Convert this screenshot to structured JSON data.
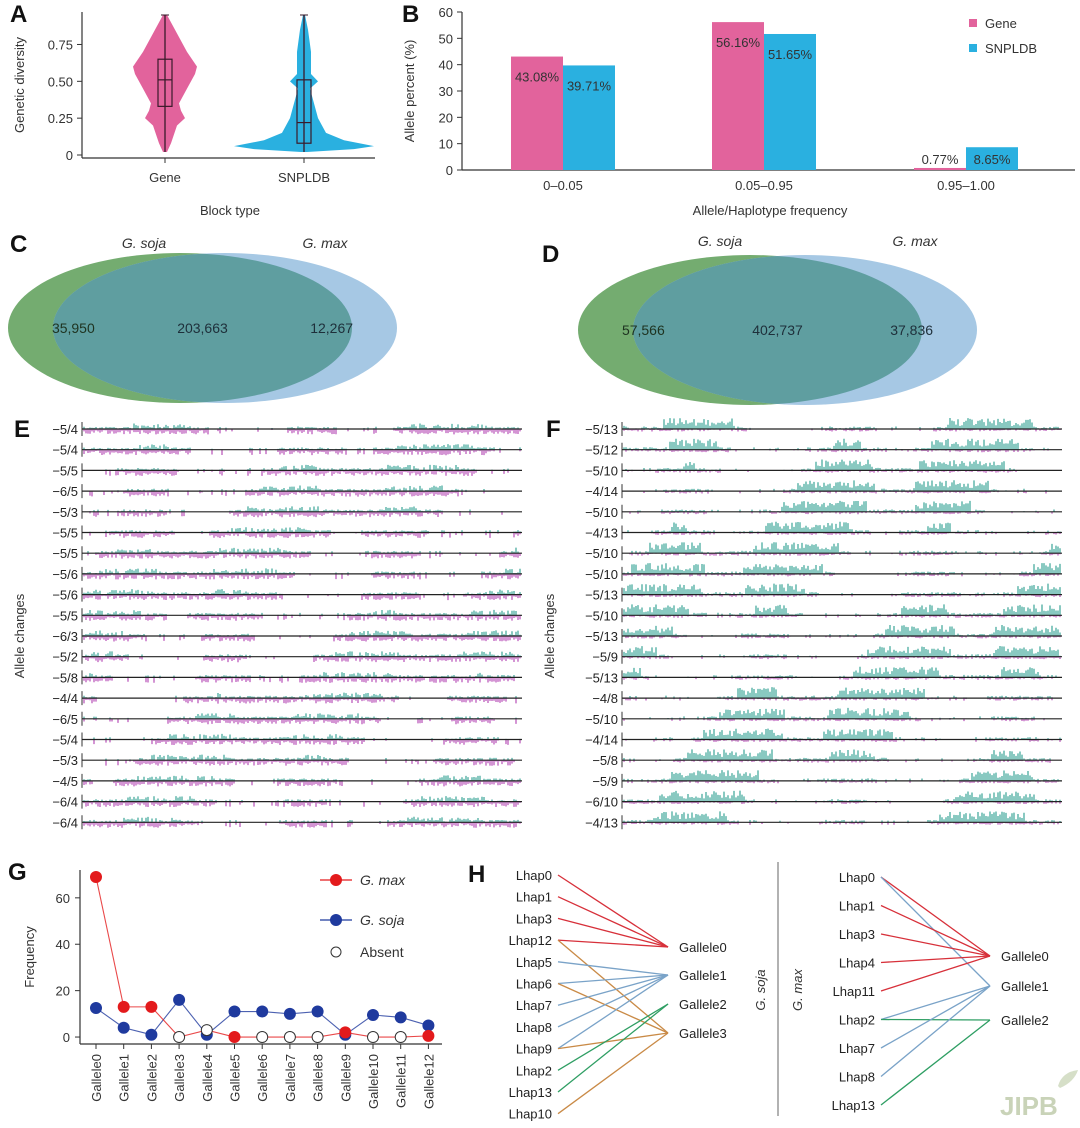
{
  "panels": {
    "A": "A",
    "B": "B",
    "C": "C",
    "D": "D",
    "E": "E",
    "F": "F",
    "G": "G",
    "H": "H"
  },
  "colors": {
    "gene": "#e2639c",
    "snpldb": "#2ab0e0",
    "soja_green": "#74ac70",
    "max_blue": "#a6c8e4",
    "overlap": "#5f9ea0",
    "track_pos": "#2a9d8f",
    "track_neg": "#b33fb3",
    "gmax_red": "#e31a1c",
    "gsoja_blue": "#1f3a9e"
  },
  "watermark": "JIPB",
  "chart_data": [
    {
      "id": "A",
      "type": "violin",
      "title": "",
      "xlabel": "Block type",
      "ylabel": "Genetic diversity",
      "categories": [
        "Gene",
        "SNPLDB"
      ],
      "yticks": [
        "0",
        "0.25",
        "0.50",
        "0.75"
      ],
      "ylim": [
        0,
        0.95
      ],
      "box": [
        {
          "name": "Gene",
          "min": 0.02,
          "q1": 0.33,
          "median": 0.51,
          "q3": 0.65,
          "max": 0.95
        },
        {
          "name": "SNPLDB",
          "min": 0.02,
          "q1": 0.08,
          "median": 0.22,
          "q3": 0.51,
          "max": 0.95
        }
      ]
    },
    {
      "id": "B",
      "type": "bar",
      "xlabel": "Allele/Haplotype frequency",
      "ylabel": "Allele percent (%)",
      "categories": [
        "0–0.05",
        "0.05–0.95",
        "0.95–1.00"
      ],
      "ylim": [
        0,
        60
      ],
      "yticks": [
        "0",
        "10",
        "20",
        "30",
        "40",
        "50",
        "60"
      ],
      "legend_position": "top-right",
      "series": [
        {
          "name": "Gene",
          "values": [
            43.08,
            56.16,
            0.77
          ],
          "labels": [
            "43.08%",
            "56.16%",
            "0.77%"
          ]
        },
        {
          "name": "SNPLDB",
          "values": [
            39.71,
            51.65,
            8.65
          ],
          "labels": [
            "39.71%",
            "51.65%",
            "8.65%"
          ]
        }
      ]
    },
    {
      "id": "C",
      "type": "venn",
      "sets": [
        {
          "name": "G. soja",
          "only": "35,950"
        },
        {
          "name": "G. max",
          "only": "12,267"
        }
      ],
      "overlap": "203,663"
    },
    {
      "id": "D",
      "type": "venn",
      "sets": [
        {
          "name": "G. soja",
          "only": "57,566"
        },
        {
          "name": "G. max",
          "only": "37,836"
        }
      ],
      "overlap": "402,737"
    },
    {
      "id": "E",
      "type": "track",
      "ylabel": "Allele changes",
      "rows": [
        "−5/4",
        "−5/4",
        "−5/5",
        "−6/5",
        "−5/3",
        "−5/5",
        "−5/5",
        "−5/6",
        "−5/6",
        "−5/5",
        "−6/3",
        "−5/2",
        "−5/8",
        "−4/4",
        "−6/5",
        "−5/4",
        "−5/3",
        "−4/5",
        "−6/4",
        "−6/4"
      ]
    },
    {
      "id": "F",
      "type": "track",
      "ylabel": "Allele changes",
      "rows": [
        "−5/13",
        "−5/12",
        "−5/10",
        "−4/14",
        "−5/10",
        "−4/13",
        "−5/10",
        "−5/10",
        "−5/13",
        "−5/10",
        "−5/13",
        "−5/9",
        "−5/13",
        "−4/8",
        "−5/10",
        "−4/14",
        "−5/8",
        "−5/9",
        "−6/10",
        "−4/13"
      ]
    },
    {
      "id": "G",
      "type": "line",
      "ylabel": "Frequency",
      "categories": [
        "Gallele0",
        "Gallele1",
        "Gallele2",
        "Gallele3",
        "Gallele4",
        "Gallele5",
        "Gallele6",
        "Gallele7",
        "Gallele8",
        "Gallele9",
        "Gallele10",
        "Gallele11",
        "Gallele12"
      ],
      "ylim": [
        -3,
        72
      ],
      "yticks": [
        "0",
        "20",
        "40",
        "60"
      ],
      "legend_position": "top-right",
      "series": [
        {
          "name": "G. max",
          "values": [
            69,
            13,
            13,
            0,
            3,
            0,
            0,
            0,
            0,
            2,
            0,
            0,
            0.5
          ],
          "absent": [
            false,
            false,
            false,
            true,
            true,
            false,
            true,
            true,
            true,
            false,
            true,
            true,
            false
          ]
        },
        {
          "name": "G. soja",
          "values": [
            12.5,
            4,
            1,
            16,
            1,
            11,
            11,
            10,
            11,
            1,
            9.5,
            8.5,
            5
          ],
          "absent": [
            false,
            false,
            false,
            false,
            false,
            false,
            false,
            false,
            false,
            false,
            false,
            false,
            false
          ]
        }
      ],
      "legend": [
        "G. max",
        "G. soja",
        "Absent"
      ]
    },
    {
      "id": "H",
      "type": "network",
      "groups": [
        {
          "name": "G. soja",
          "left": [
            "Lhap0",
            "Lhap1",
            "Lhap3",
            "Lhap12",
            "Lhap5",
            "Lhap6",
            "Lhap7",
            "Lhap8",
            "Lhap9",
            "Lhap2",
            "Lhap13",
            "Lhap10"
          ],
          "right": [
            "Gallele0",
            "Gallele1",
            "Gallele2",
            "Gallele3"
          ],
          "links": [
            [
              "Lhap0",
              "Gallele0"
            ],
            [
              "Lhap1",
              "Gallele0"
            ],
            [
              "Lhap3",
              "Gallele0"
            ],
            [
              "Lhap12",
              "Gallele0"
            ],
            [
              "Lhap12",
              "Gallele3"
            ],
            [
              "Lhap5",
              "Gallele1"
            ],
            [
              "Lhap6",
              "Gallele1"
            ],
            [
              "Lhap6",
              "Gallele3"
            ],
            [
              "Lhap7",
              "Gallele1"
            ],
            [
              "Lhap8",
              "Gallele1"
            ],
            [
              "Lhap9",
              "Gallele1"
            ],
            [
              "Lhap9",
              "Gallele3"
            ],
            [
              "Lhap2",
              "Gallele2"
            ],
            [
              "Lhap13",
              "Gallele2"
            ],
            [
              "Lhap10",
              "Gallele3"
            ]
          ]
        },
        {
          "name": "G. max",
          "left": [
            "Lhap0",
            "Lhap1",
            "Lhap3",
            "Lhap4",
            "Lhap11",
            "Lhap2",
            "Lhap7",
            "Lhap8",
            "Lhap13"
          ],
          "right": [
            "Gallele0",
            "Gallele1",
            "Gallele2"
          ],
          "links": [
            [
              "Lhap0",
              "Gallele0"
            ],
            [
              "Lhap0",
              "Gallele1"
            ],
            [
              "Lhap1",
              "Gallele0"
            ],
            [
              "Lhap3",
              "Gallele0"
            ],
            [
              "Lhap4",
              "Gallele0"
            ],
            [
              "Lhap11",
              "Gallele0"
            ],
            [
              "Lhap2",
              "Gallele1"
            ],
            [
              "Lhap2",
              "Gallele2"
            ],
            [
              "Lhap7",
              "Gallele1"
            ],
            [
              "Lhap8",
              "Gallele1"
            ],
            [
              "Lhap13",
              "Gallele2"
            ]
          ]
        }
      ]
    }
  ]
}
